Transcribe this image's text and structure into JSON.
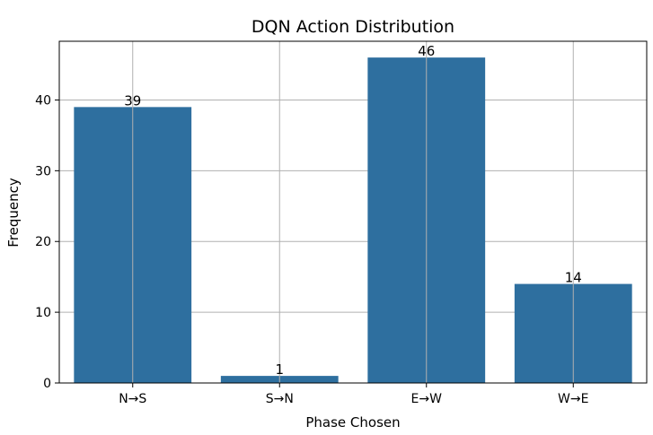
{
  "chart_data": {
    "type": "bar",
    "title": "DQN Action Distribution",
    "xlabel": "Phase Chosen",
    "ylabel": "Frequency",
    "categories": [
      "N→S",
      "S→N",
      "E→W",
      "W→E"
    ],
    "values": [
      39,
      1,
      46,
      14
    ],
    "data_labels": [
      "39",
      "1",
      "46",
      "14"
    ],
    "ylim": [
      0,
      48.3
    ],
    "yticks": [
      0,
      10,
      20,
      30,
      40
    ],
    "ytick_labels": [
      "0",
      "10",
      "20",
      "30",
      "40"
    ],
    "grid": true,
    "bar_color": "#2e6f9f"
  }
}
